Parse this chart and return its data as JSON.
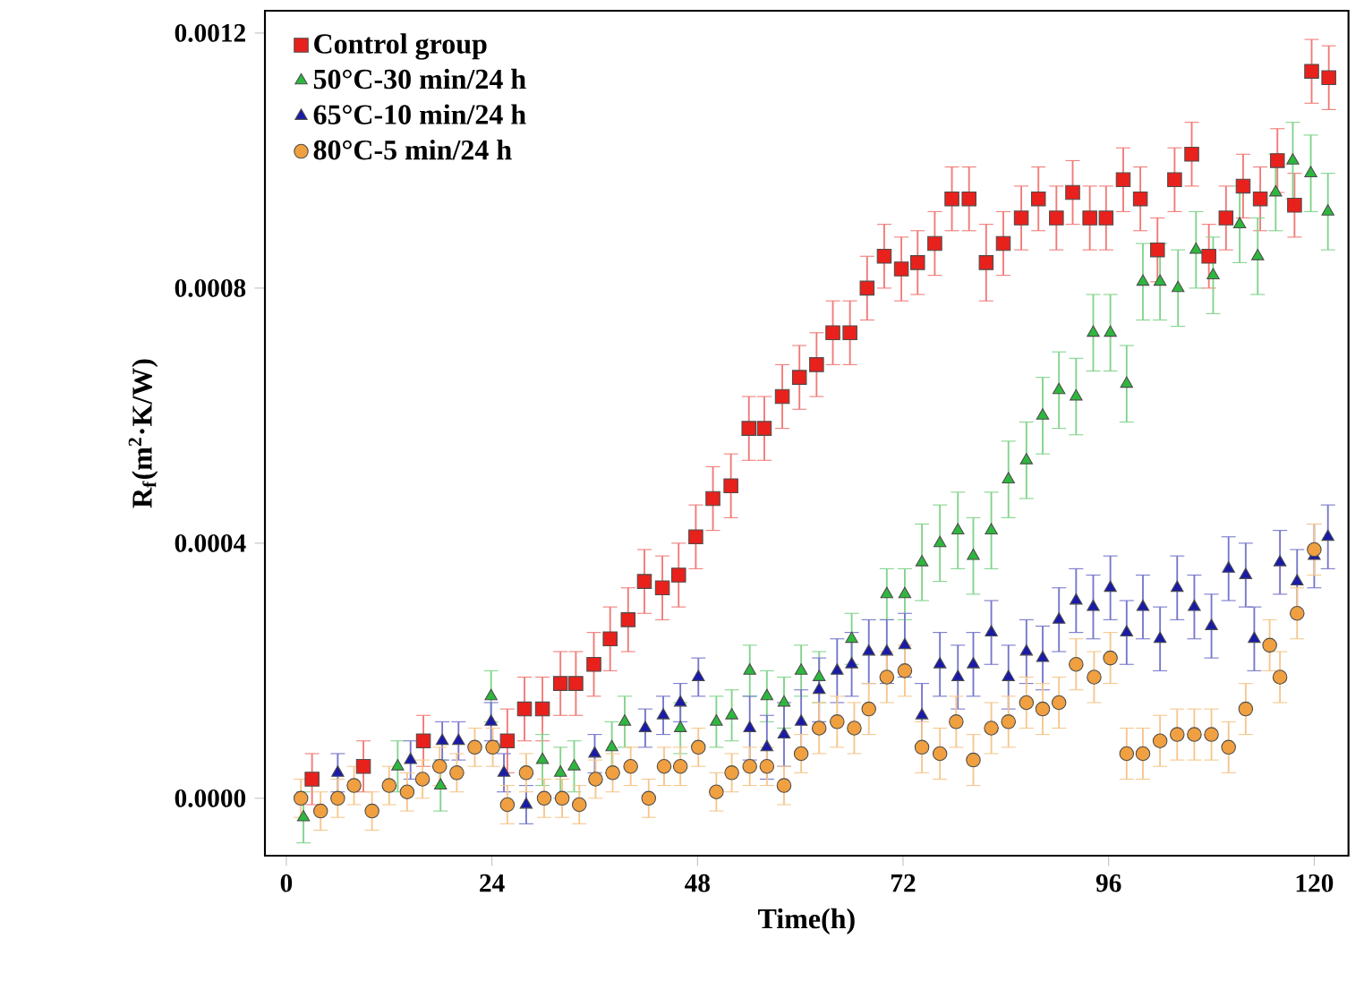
{
  "chart_data": {
    "type": "scatter",
    "xlabel": "Time(h)",
    "ylabel": "R$_{f}$(m$^{2}$·K/W)",
    "xlim": [
      -2.5,
      124
    ],
    "ylim": [
      -9e-05,
      0.001235
    ],
    "xticks": [
      0,
      24,
      48,
      72,
      96,
      120
    ],
    "yticks": [
      {
        "value": 0,
        "label": "0.0000"
      },
      {
        "value": 0.0004,
        "label": "0.0004"
      },
      {
        "value": 0.0008,
        "label": "0.0008"
      },
      {
        "value": 0.0012,
        "label": "0.0012"
      }
    ],
    "legend": "top left",
    "series": [
      {
        "name": "Control group",
        "color": "#e8211c",
        "marker": "square",
        "x": [
          3,
          9,
          16,
          25.8,
          27.8,
          29.9,
          32.0,
          33.8,
          35.9,
          37.8,
          39.9,
          41.8,
          43.9,
          45.8,
          47.8,
          49.8,
          51.9,
          54.0,
          55.8,
          57.9,
          59.9,
          61.9,
          63.8,
          65.8,
          67.8,
          69.8,
          71.8,
          73.7,
          75.7,
          77.7,
          79.7,
          81.7,
          83.7,
          85.8,
          87.8,
          89.9,
          91.8,
          93.8,
          95.7,
          97.7,
          99.7,
          101.7,
          103.7,
          105.7,
          107.7,
          109.7,
          111.7,
          113.7,
          115.7,
          117.7,
          119.7,
          121.7
        ],
        "values": [
          3e-05,
          5e-05,
          9e-05,
          9e-05,
          0.00014,
          0.00014,
          0.00018,
          0.00018,
          0.00021,
          0.00025,
          0.00028,
          0.00034,
          0.00033,
          0.00035,
          0.00041,
          0.00047,
          0.00049,
          0.00058,
          0.00058,
          0.00063,
          0.00066,
          0.00068,
          0.00073,
          0.00073,
          0.0008,
          0.00085,
          0.00083,
          0.00084,
          0.00087,
          0.00094,
          0.00094,
          0.00084,
          0.00087,
          0.00091,
          0.00094,
          0.00091,
          0.00095,
          0.00091,
          0.00091,
          0.00097,
          0.00094,
          0.00086,
          0.00097,
          0.00101,
          0.00085,
          0.00091,
          0.00096,
          0.00094,
          0.001,
          0.00093,
          0.00114,
          0.00113
        ],
        "errors": [
          4e-05,
          4e-05,
          4e-05,
          5e-05,
          5e-05,
          5e-05,
          5e-05,
          5e-05,
          5e-05,
          5e-05,
          5e-05,
          5e-05,
          5e-05,
          5e-05,
          5e-05,
          5e-05,
          5e-05,
          5e-05,
          5e-05,
          5e-05,
          5e-05,
          5e-05,
          5e-05,
          5e-05,
          5e-05,
          5e-05,
          5e-05,
          5e-05,
          5e-05,
          5e-05,
          5e-05,
          6e-05,
          5e-05,
          5e-05,
          5e-05,
          5e-05,
          5e-05,
          5e-05,
          5e-05,
          5e-05,
          5e-05,
          5e-05,
          5e-05,
          5e-05,
          5e-05,
          5e-05,
          5e-05,
          5e-05,
          5e-05,
          5e-05,
          5e-05,
          5e-05
        ]
      },
      {
        "name": "50°C-30 min/24 h",
        "color": "#2db83d",
        "marker": "triangle",
        "x": [
          2,
          13,
          18,
          23.9,
          29.9,
          32,
          33.6,
          38,
          39.5,
          46.0,
          50.2,
          52.0,
          54.1,
          56.1,
          58.1,
          60.1,
          62.2,
          66.0,
          70.1,
          72.2,
          74.2,
          76.3,
          78.4,
          80.2,
          82.3,
          84.3,
          86.4,
          88.3,
          90.2,
          92.2,
          94.2,
          96.2,
          98.1,
          100,
          102,
          104.1,
          106.2,
          108.2,
          111.3,
          113.4,
          115.5,
          117.5,
          119.6,
          121.6
        ],
        "values": [
          -3e-05,
          5e-05,
          2e-05,
          0.00016,
          6e-05,
          4e-05,
          5e-05,
          8e-05,
          0.00012,
          0.00011,
          0.00012,
          0.00013,
          0.0002,
          0.00016,
          0.00015,
          0.0002,
          0.00019,
          0.00025,
          0.00032,
          0.00032,
          0.00037,
          0.0004,
          0.00042,
          0.00038,
          0.00042,
          0.0005,
          0.00053,
          0.0006,
          0.00064,
          0.00063,
          0.00073,
          0.00073,
          0.00065,
          0.00081,
          0.00081,
          0.0008,
          0.00086,
          0.00082,
          0.0009,
          0.00085,
          0.00095,
          0.001,
          0.00098,
          0.00092
        ],
        "errors": [
          4e-05,
          4e-05,
          4e-05,
          4e-05,
          4e-05,
          4e-05,
          4e-05,
          4e-05,
          4e-05,
          4e-05,
          4e-05,
          4e-05,
          4e-05,
          4e-05,
          4e-05,
          4e-05,
          4e-05,
          4e-05,
          4e-05,
          4e-05,
          6e-05,
          6e-05,
          6e-05,
          6e-05,
          6e-05,
          6e-05,
          6e-05,
          6e-05,
          6e-05,
          6e-05,
          6e-05,
          6e-05,
          6e-05,
          6e-05,
          6e-05,
          6e-05,
          6e-05,
          6e-05,
          6e-05,
          6e-05,
          6e-05,
          6e-05,
          6e-05,
          6e-05
        ]
      },
      {
        "name": "65°C-10 min/24 h",
        "color": "#1a1aa8",
        "marker": "triangle",
        "x": [
          6,
          14.5,
          18.2,
          20.1,
          23.9,
          25.4,
          28,
          36,
          41.9,
          44,
          46.0,
          48.1,
          54.1,
          56.1,
          58.1,
          60.1,
          62.2,
          64.3,
          66.0,
          68.0,
          70.1,
          72.2,
          74.2,
          76.3,
          78.4,
          80.2,
          82.3,
          84.3,
          86.4,
          88.3,
          90.2,
          92.2,
          94.2,
          96.2,
          98.1,
          100,
          102,
          104,
          106,
          108,
          110,
          112,
          113,
          116,
          118,
          120,
          121.6
        ],
        "values": [
          4e-05,
          6e-05,
          9e-05,
          9e-05,
          0.00012,
          4e-05,
          -1e-05,
          7e-05,
          0.00011,
          0.00013,
          0.00015,
          0.00019,
          0.00011,
          8e-05,
          0.0001,
          0.00012,
          0.00017,
          0.0002,
          0.00021,
          0.00023,
          0.00023,
          0.00024,
          0.00013,
          0.00021,
          0.00019,
          0.00021,
          0.00026,
          0.00019,
          0.00023,
          0.00022,
          0.00028,
          0.00031,
          0.0003,
          0.00033,
          0.00026,
          0.0003,
          0.00025,
          0.00033,
          0.0003,
          0.00027,
          0.00036,
          0.00035,
          0.00025,
          0.00037,
          0.00034,
          0.00038,
          0.00041
        ],
        "errors": [
          3e-05,
          3e-05,
          3e-05,
          3e-05,
          3e-05,
          3e-05,
          3e-05,
          3e-05,
          3e-05,
          3e-05,
          3e-05,
          3e-05,
          5e-05,
          5e-05,
          5e-05,
          5e-05,
          5e-05,
          5e-05,
          5e-05,
          5e-05,
          5e-05,
          5e-05,
          5e-05,
          5e-05,
          5e-05,
          5e-05,
          5e-05,
          5e-05,
          5e-05,
          5e-05,
          5e-05,
          5e-05,
          5e-05,
          5e-05,
          5e-05,
          5e-05,
          5e-05,
          5e-05,
          5e-05,
          5e-05,
          5e-05,
          5e-05,
          5e-05,
          5e-05,
          5e-05,
          5e-05,
          5e-05
        ]
      },
      {
        "name": "80°C-5 min/24 h",
        "color": "#f0a040",
        "marker": "circle",
        "x": [
          1.7,
          4,
          6,
          7.9,
          10,
          12,
          14.1,
          15.9,
          17.9,
          19.9,
          22,
          24.1,
          25.8,
          28,
          30.1,
          32.2,
          34.2,
          36.1,
          38.1,
          40.2,
          42.3,
          44.1,
          46,
          48.1,
          50.2,
          52,
          54.1,
          56.1,
          58.1,
          60.1,
          62.2,
          64.3,
          66.3,
          68,
          70.1,
          72.2,
          74.2,
          76.3,
          78.2,
          80.2,
          82.3,
          84.3,
          86.4,
          88.3,
          90.2,
          92.2,
          94.3,
          96.2,
          98.1,
          100,
          102,
          104,
          106,
          108,
          110,
          112,
          114.8,
          116,
          118,
          120
        ],
        "values": [
          0,
          -2e-05,
          0,
          2e-05,
          -2e-05,
          2e-05,
          1e-05,
          3e-05,
          5e-05,
          4e-05,
          8e-05,
          8e-05,
          -1e-05,
          4e-05,
          0,
          0,
          -1e-05,
          3e-05,
          4e-05,
          5e-05,
          0,
          5e-05,
          5e-05,
          8e-05,
          1e-05,
          4e-05,
          5e-05,
          5e-05,
          2e-05,
          7e-05,
          0.00011,
          0.00012,
          0.00011,
          0.00014,
          0.00019,
          0.0002,
          8e-05,
          7e-05,
          0.00012,
          6e-05,
          0.00011,
          0.00012,
          0.00015,
          0.00014,
          0.00015,
          0.00021,
          0.00019,
          0.00022,
          7e-05,
          7e-05,
          9e-05,
          0.0001,
          0.0001,
          0.0001,
          8e-05,
          0.00014,
          0.00024,
          0.00019,
          0.00029,
          0.00039
        ],
        "errors": [
          3e-05,
          3e-05,
          3e-05,
          3e-05,
          3e-05,
          3e-05,
          3e-05,
          3e-05,
          3e-05,
          3e-05,
          3e-05,
          3e-05,
          3e-05,
          3e-05,
          3e-05,
          3e-05,
          3e-05,
          3e-05,
          3e-05,
          3e-05,
          3e-05,
          3e-05,
          3e-05,
          3e-05,
          3e-05,
          3e-05,
          3e-05,
          3e-05,
          3e-05,
          3e-05,
          4e-05,
          4e-05,
          4e-05,
          4e-05,
          4e-05,
          4e-05,
          4e-05,
          4e-05,
          4e-05,
          4e-05,
          4e-05,
          4e-05,
          4e-05,
          4e-05,
          4e-05,
          4e-05,
          4e-05,
          4e-05,
          4e-05,
          4e-05,
          4e-05,
          4e-05,
          4e-05,
          4e-05,
          4e-05,
          4e-05,
          4e-05,
          4e-05,
          4e-05,
          4e-05
        ]
      }
    ]
  }
}
